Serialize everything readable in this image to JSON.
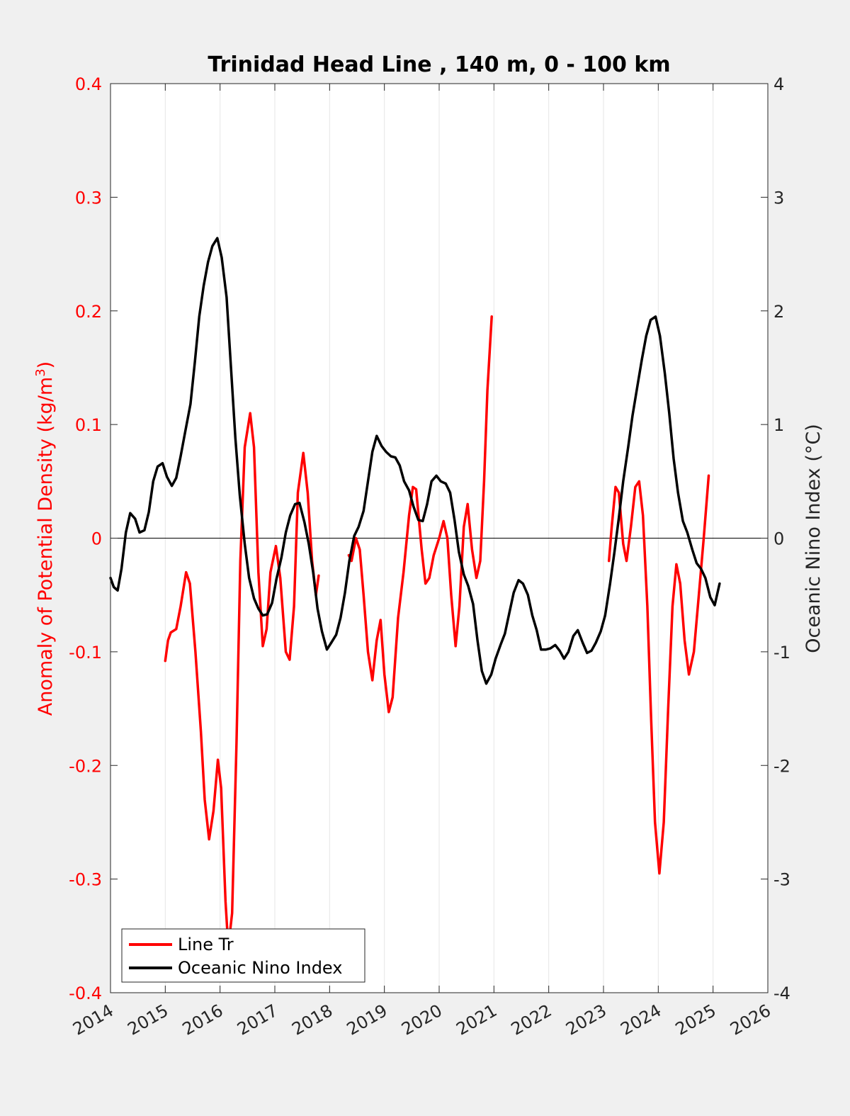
{
  "chart_data": {
    "type": "line",
    "title": "Trinidad Head Line , 140 m, 0 - 100 km",
    "xlim": [
      2014,
      2026
    ],
    "x_ticks": [
      "2014",
      "2015",
      "2016",
      "2017",
      "2018",
      "2019",
      "2020",
      "2021",
      "2022",
      "2023",
      "2024",
      "2025",
      "2026"
    ],
    "y_left": {
      "label": "Anomaly of Potential Density (kg/m",
      "label_sup": "3",
      "label_end": ")",
      "lim": [
        -0.4,
        0.4
      ],
      "ticks": [
        "-0.4",
        "-0.3",
        "-0.2",
        "-0.1",
        "0",
        "0.1",
        "0.2",
        "0.3",
        "0.4"
      ],
      "color": "#ff0000"
    },
    "y_right": {
      "label": "Oceanic Nino Index (°C)",
      "lim": [
        -4,
        4
      ],
      "ticks": [
        "-4",
        "-3",
        "-2",
        "-1",
        "0",
        "1",
        "2",
        "3",
        "4"
      ],
      "color": "#000000"
    },
    "grid": "vertical",
    "legend_placement": "bottom-left",
    "series": [
      {
        "name": "Line Tr",
        "axis": "left",
        "color": "#ff0000",
        "segments": [
          [
            [
              2015.0,
              -0.108
            ],
            [
              2015.05,
              -0.09
            ],
            [
              2015.1,
              -0.083
            ],
            [
              2015.2,
              -0.08
            ],
            [
              2015.28,
              -0.06
            ],
            [
              2015.38,
              -0.03
            ],
            [
              2015.45,
              -0.04
            ],
            [
              2015.55,
              -0.1
            ],
            [
              2015.65,
              -0.17
            ],
            [
              2015.72,
              -0.23
            ],
            [
              2015.8,
              -0.265
            ],
            [
              2015.88,
              -0.24
            ],
            [
              2015.96,
              -0.195
            ],
            [
              2016.02,
              -0.22
            ],
            [
              2016.1,
              -0.32
            ],
            [
              2016.15,
              -0.36
            ],
            [
              2016.22,
              -0.33
            ],
            [
              2016.3,
              -0.18
            ],
            [
              2016.37,
              -0.02
            ],
            [
              2016.45,
              0.08
            ],
            [
              2016.55,
              0.11
            ],
            [
              2016.62,
              0.08
            ],
            [
              2016.7,
              -0.03
            ],
            [
              2016.78,
              -0.095
            ],
            [
              2016.85,
              -0.08
            ],
            [
              2016.92,
              -0.03
            ],
            [
              2017.02,
              -0.007
            ],
            [
              2017.1,
              -0.035
            ],
            [
              2017.2,
              -0.1
            ],
            [
              2017.27,
              -0.107
            ],
            [
              2017.35,
              -0.06
            ],
            [
              2017.42,
              0.04
            ],
            [
              2017.52,
              0.075
            ],
            [
              2017.6,
              0.04
            ],
            [
              2017.68,
              -0.02
            ],
            [
              2017.75,
              -0.05
            ],
            [
              2017.8,
              -0.033
            ]
          ],
          [
            [
              2018.35,
              -0.015
            ],
            [
              2018.4,
              -0.02
            ],
            [
              2018.48,
              0.0
            ],
            [
              2018.55,
              -0.01
            ],
            [
              2018.62,
              -0.05
            ],
            [
              2018.7,
              -0.1
            ],
            [
              2018.78,
              -0.125
            ],
            [
              2018.86,
              -0.09
            ],
            [
              2018.93,
              -0.072
            ],
            [
              2019.0,
              -0.12
            ],
            [
              2019.08,
              -0.153
            ],
            [
              2019.15,
              -0.14
            ],
            [
              2019.25,
              -0.07
            ],
            [
              2019.35,
              -0.03
            ],
            [
              2019.45,
              0.02
            ],
            [
              2019.52,
              0.045
            ],
            [
              2019.58,
              0.043
            ],
            [
              2019.68,
              -0.01
            ],
            [
              2019.75,
              -0.04
            ],
            [
              2019.82,
              -0.035
            ],
            [
              2019.9,
              -0.015
            ],
            [
              2020.0,
              0.0
            ],
            [
              2020.08,
              0.015
            ],
            [
              2020.15,
              0.0
            ],
            [
              2020.22,
              -0.05
            ],
            [
              2020.3,
              -0.095
            ],
            [
              2020.37,
              -0.06
            ],
            [
              2020.45,
              0.01
            ],
            [
              2020.52,
              0.03
            ],
            [
              2020.6,
              -0.01
            ],
            [
              2020.68,
              -0.035
            ],
            [
              2020.75,
              -0.02
            ],
            [
              2020.82,
              0.05
            ],
            [
              2020.88,
              0.13
            ],
            [
              2020.96,
              0.195
            ]
          ],
          [
            [
              2023.1,
              -0.02
            ],
            [
              2023.15,
              0.01
            ],
            [
              2023.22,
              0.045
            ],
            [
              2023.28,
              0.04
            ],
            [
              2023.36,
              -0.005
            ],
            [
              2023.42,
              -0.02
            ],
            [
              2023.5,
              0.01
            ],
            [
              2023.58,
              0.045
            ],
            [
              2023.65,
              0.05
            ],
            [
              2023.72,
              0.02
            ],
            [
              2023.8,
              -0.06
            ],
            [
              2023.87,
              -0.16
            ],
            [
              2023.94,
              -0.25
            ],
            [
              2024.02,
              -0.295
            ],
            [
              2024.1,
              -0.25
            ],
            [
              2024.18,
              -0.15
            ],
            [
              2024.26,
              -0.06
            ],
            [
              2024.33,
              -0.023
            ],
            [
              2024.4,
              -0.04
            ],
            [
              2024.48,
              -0.09
            ],
            [
              2024.56,
              -0.12
            ],
            [
              2024.65,
              -0.1
            ],
            [
              2024.74,
              -0.05
            ],
            [
              2024.83,
              0.0
            ],
            [
              2024.92,
              0.055
            ]
          ]
        ]
      },
      {
        "name": "Oceanic Nino Index",
        "axis": "right",
        "color": "#000000",
        "segments": [
          [
            [
              2014.0,
              -0.35
            ],
            [
              2014.06,
              -0.43
            ],
            [
              2014.13,
              -0.46
            ],
            [
              2014.2,
              -0.27
            ],
            [
              2014.28,
              0.05
            ],
            [
              2014.36,
              0.22
            ],
            [
              2014.45,
              0.17
            ],
            [
              2014.53,
              0.05
            ],
            [
              2014.62,
              0.07
            ],
            [
              2014.7,
              0.23
            ],
            [
              2014.78,
              0.5
            ],
            [
              2014.86,
              0.63
            ],
            [
              2014.95,
              0.66
            ],
            [
              2015.03,
              0.54
            ],
            [
              2015.12,
              0.46
            ],
            [
              2015.2,
              0.53
            ],
            [
              2015.28,
              0.72
            ],
            [
              2015.37,
              0.95
            ],
            [
              2015.46,
              1.18
            ],
            [
              2015.54,
              1.55
            ],
            [
              2015.62,
              1.95
            ],
            [
              2015.7,
              2.22
            ],
            [
              2015.78,
              2.43
            ],
            [
              2015.86,
              2.57
            ],
            [
              2015.95,
              2.64
            ],
            [
              2016.03,
              2.47
            ],
            [
              2016.12,
              2.12
            ],
            [
              2016.2,
              1.5
            ],
            [
              2016.28,
              0.88
            ],
            [
              2016.36,
              0.38
            ],
            [
              2016.45,
              -0.05
            ],
            [
              2016.53,
              -0.35
            ],
            [
              2016.62,
              -0.53
            ],
            [
              2016.7,
              -0.62
            ],
            [
              2016.78,
              -0.68
            ],
            [
              2016.86,
              -0.67
            ],
            [
              2016.95,
              -0.57
            ],
            [
              2017.03,
              -0.36
            ],
            [
              2017.12,
              -0.17
            ],
            [
              2017.2,
              0.05
            ],
            [
              2017.28,
              0.2
            ],
            [
              2017.37,
              0.3
            ],
            [
              2017.45,
              0.31
            ],
            [
              2017.54,
              0.14
            ],
            [
              2017.62,
              -0.05
            ],
            [
              2017.7,
              -0.3
            ],
            [
              2017.78,
              -0.62
            ],
            [
              2017.86,
              -0.82
            ],
            [
              2017.95,
              -0.98
            ],
            [
              2018.03,
              -0.92
            ],
            [
              2018.12,
              -0.85
            ],
            [
              2018.2,
              -0.7
            ],
            [
              2018.28,
              -0.48
            ],
            [
              2018.36,
              -0.2
            ],
            [
              2018.45,
              0.02
            ],
            [
              2018.53,
              0.1
            ],
            [
              2018.62,
              0.24
            ],
            [
              2018.7,
              0.5
            ],
            [
              2018.78,
              0.76
            ],
            [
              2018.86,
              0.9
            ],
            [
              2018.95,
              0.81
            ],
            [
              2019.03,
              0.76
            ],
            [
              2019.12,
              0.72
            ],
            [
              2019.2,
              0.71
            ],
            [
              2019.28,
              0.64
            ],
            [
              2019.36,
              0.5
            ],
            [
              2019.45,
              0.42
            ],
            [
              2019.53,
              0.28
            ],
            [
              2019.62,
              0.16
            ],
            [
              2019.7,
              0.15
            ],
            [
              2019.78,
              0.3
            ],
            [
              2019.86,
              0.5
            ],
            [
              2019.95,
              0.55
            ],
            [
              2020.03,
              0.5
            ],
            [
              2020.12,
              0.48
            ],
            [
              2020.2,
              0.4
            ],
            [
              2020.28,
              0.16
            ],
            [
              2020.36,
              -0.12
            ],
            [
              2020.45,
              -0.32
            ],
            [
              2020.53,
              -0.42
            ],
            [
              2020.62,
              -0.58
            ],
            [
              2020.7,
              -0.9
            ],
            [
              2020.78,
              -1.17
            ],
            [
              2020.86,
              -1.28
            ],
            [
              2020.95,
              -1.2
            ],
            [
              2021.03,
              -1.06
            ],
            [
              2021.12,
              -0.94
            ],
            [
              2021.2,
              -0.84
            ],
            [
              2021.28,
              -0.66
            ],
            [
              2021.36,
              -0.48
            ],
            [
              2021.45,
              -0.37
            ],
            [
              2021.53,
              -0.4
            ],
            [
              2021.62,
              -0.5
            ],
            [
              2021.7,
              -0.68
            ],
            [
              2021.78,
              -0.81
            ],
            [
              2021.86,
              -0.98
            ],
            [
              2021.95,
              -0.98
            ],
            [
              2022.03,
              -0.97
            ],
            [
              2022.12,
              -0.94
            ],
            [
              2022.2,
              -0.99
            ],
            [
              2022.28,
              -1.06
            ],
            [
              2022.36,
              -1.0
            ],
            [
              2022.45,
              -0.86
            ],
            [
              2022.53,
              -0.81
            ],
            [
              2022.62,
              -0.92
            ],
            [
              2022.7,
              -1.01
            ],
            [
              2022.78,
              -0.99
            ],
            [
              2022.86,
              -0.92
            ],
            [
              2022.95,
              -0.82
            ],
            [
              2023.03,
              -0.68
            ],
            [
              2023.12,
              -0.4
            ],
            [
              2023.2,
              -0.12
            ],
            [
              2023.28,
              0.18
            ],
            [
              2023.36,
              0.5
            ],
            [
              2023.45,
              0.8
            ],
            [
              2023.53,
              1.08
            ],
            [
              2023.62,
              1.34
            ],
            [
              2023.7,
              1.57
            ],
            [
              2023.78,
              1.78
            ],
            [
              2023.86,
              1.92
            ],
            [
              2023.95,
              1.95
            ],
            [
              2024.03,
              1.78
            ],
            [
              2024.12,
              1.45
            ],
            [
              2024.2,
              1.1
            ],
            [
              2024.28,
              0.7
            ],
            [
              2024.36,
              0.4
            ],
            [
              2024.45,
              0.15
            ],
            [
              2024.53,
              0.05
            ],
            [
              2024.62,
              -0.1
            ],
            [
              2024.7,
              -0.22
            ],
            [
              2024.78,
              -0.27
            ],
            [
              2024.86,
              -0.35
            ],
            [
              2024.95,
              -0.52
            ],
            [
              2025.03,
              -0.59
            ],
            [
              2025.12,
              -0.4
            ]
          ]
        ]
      }
    ]
  }
}
